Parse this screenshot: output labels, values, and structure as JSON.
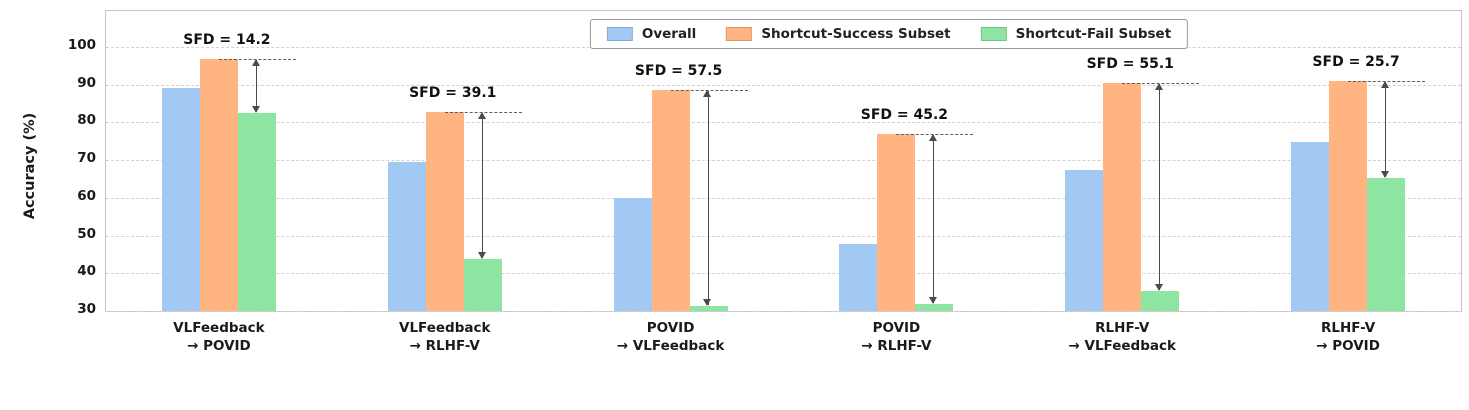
{
  "chart_data": {
    "type": "bar",
    "title": "",
    "xlabel": "",
    "ylabel": "Accuracy (%)",
    "ylim": [
      30,
      100
    ],
    "yticks": [
      30,
      40,
      50,
      60,
      70,
      80,
      90,
      100
    ],
    "grid": "dashed-horizontal",
    "legend_position": "upper-center",
    "categories": [
      {
        "line1": "VLFeedback",
        "line2": "→ POVID"
      },
      {
        "line1": "VLFeedback",
        "line2": "→ RLHF-V"
      },
      {
        "line1": "POVID",
        "line2": "→ VLFeedback"
      },
      {
        "line1": "POVID",
        "line2": "→ RLHF-V"
      },
      {
        "line1": "RLHF-V",
        "line2": "→ VLFeedback"
      },
      {
        "line1": "RLHF-V",
        "line2": "→ POVID"
      }
    ],
    "series": [
      {
        "name": "Overall",
        "color": "#a1c9f4",
        "values": [
          89.2,
          69.4,
          60.0,
          47.9,
          67.5,
          74.9
        ]
      },
      {
        "name": "Shortcut-Success Subset",
        "color": "#ffb482",
        "values": [
          96.8,
          82.8,
          88.7,
          77.0,
          90.5,
          91.0
        ]
      },
      {
        "name": "Shortcut-Fail Subset",
        "color": "#8de5a1",
        "values": [
          82.6,
          43.7,
          31.2,
          31.8,
          35.4,
          65.3
        ]
      }
    ],
    "annotations": {
      "label_prefix": "SFD = ",
      "values": [
        14.2,
        39.1,
        57.5,
        45.2,
        55.1,
        25.7
      ]
    }
  }
}
